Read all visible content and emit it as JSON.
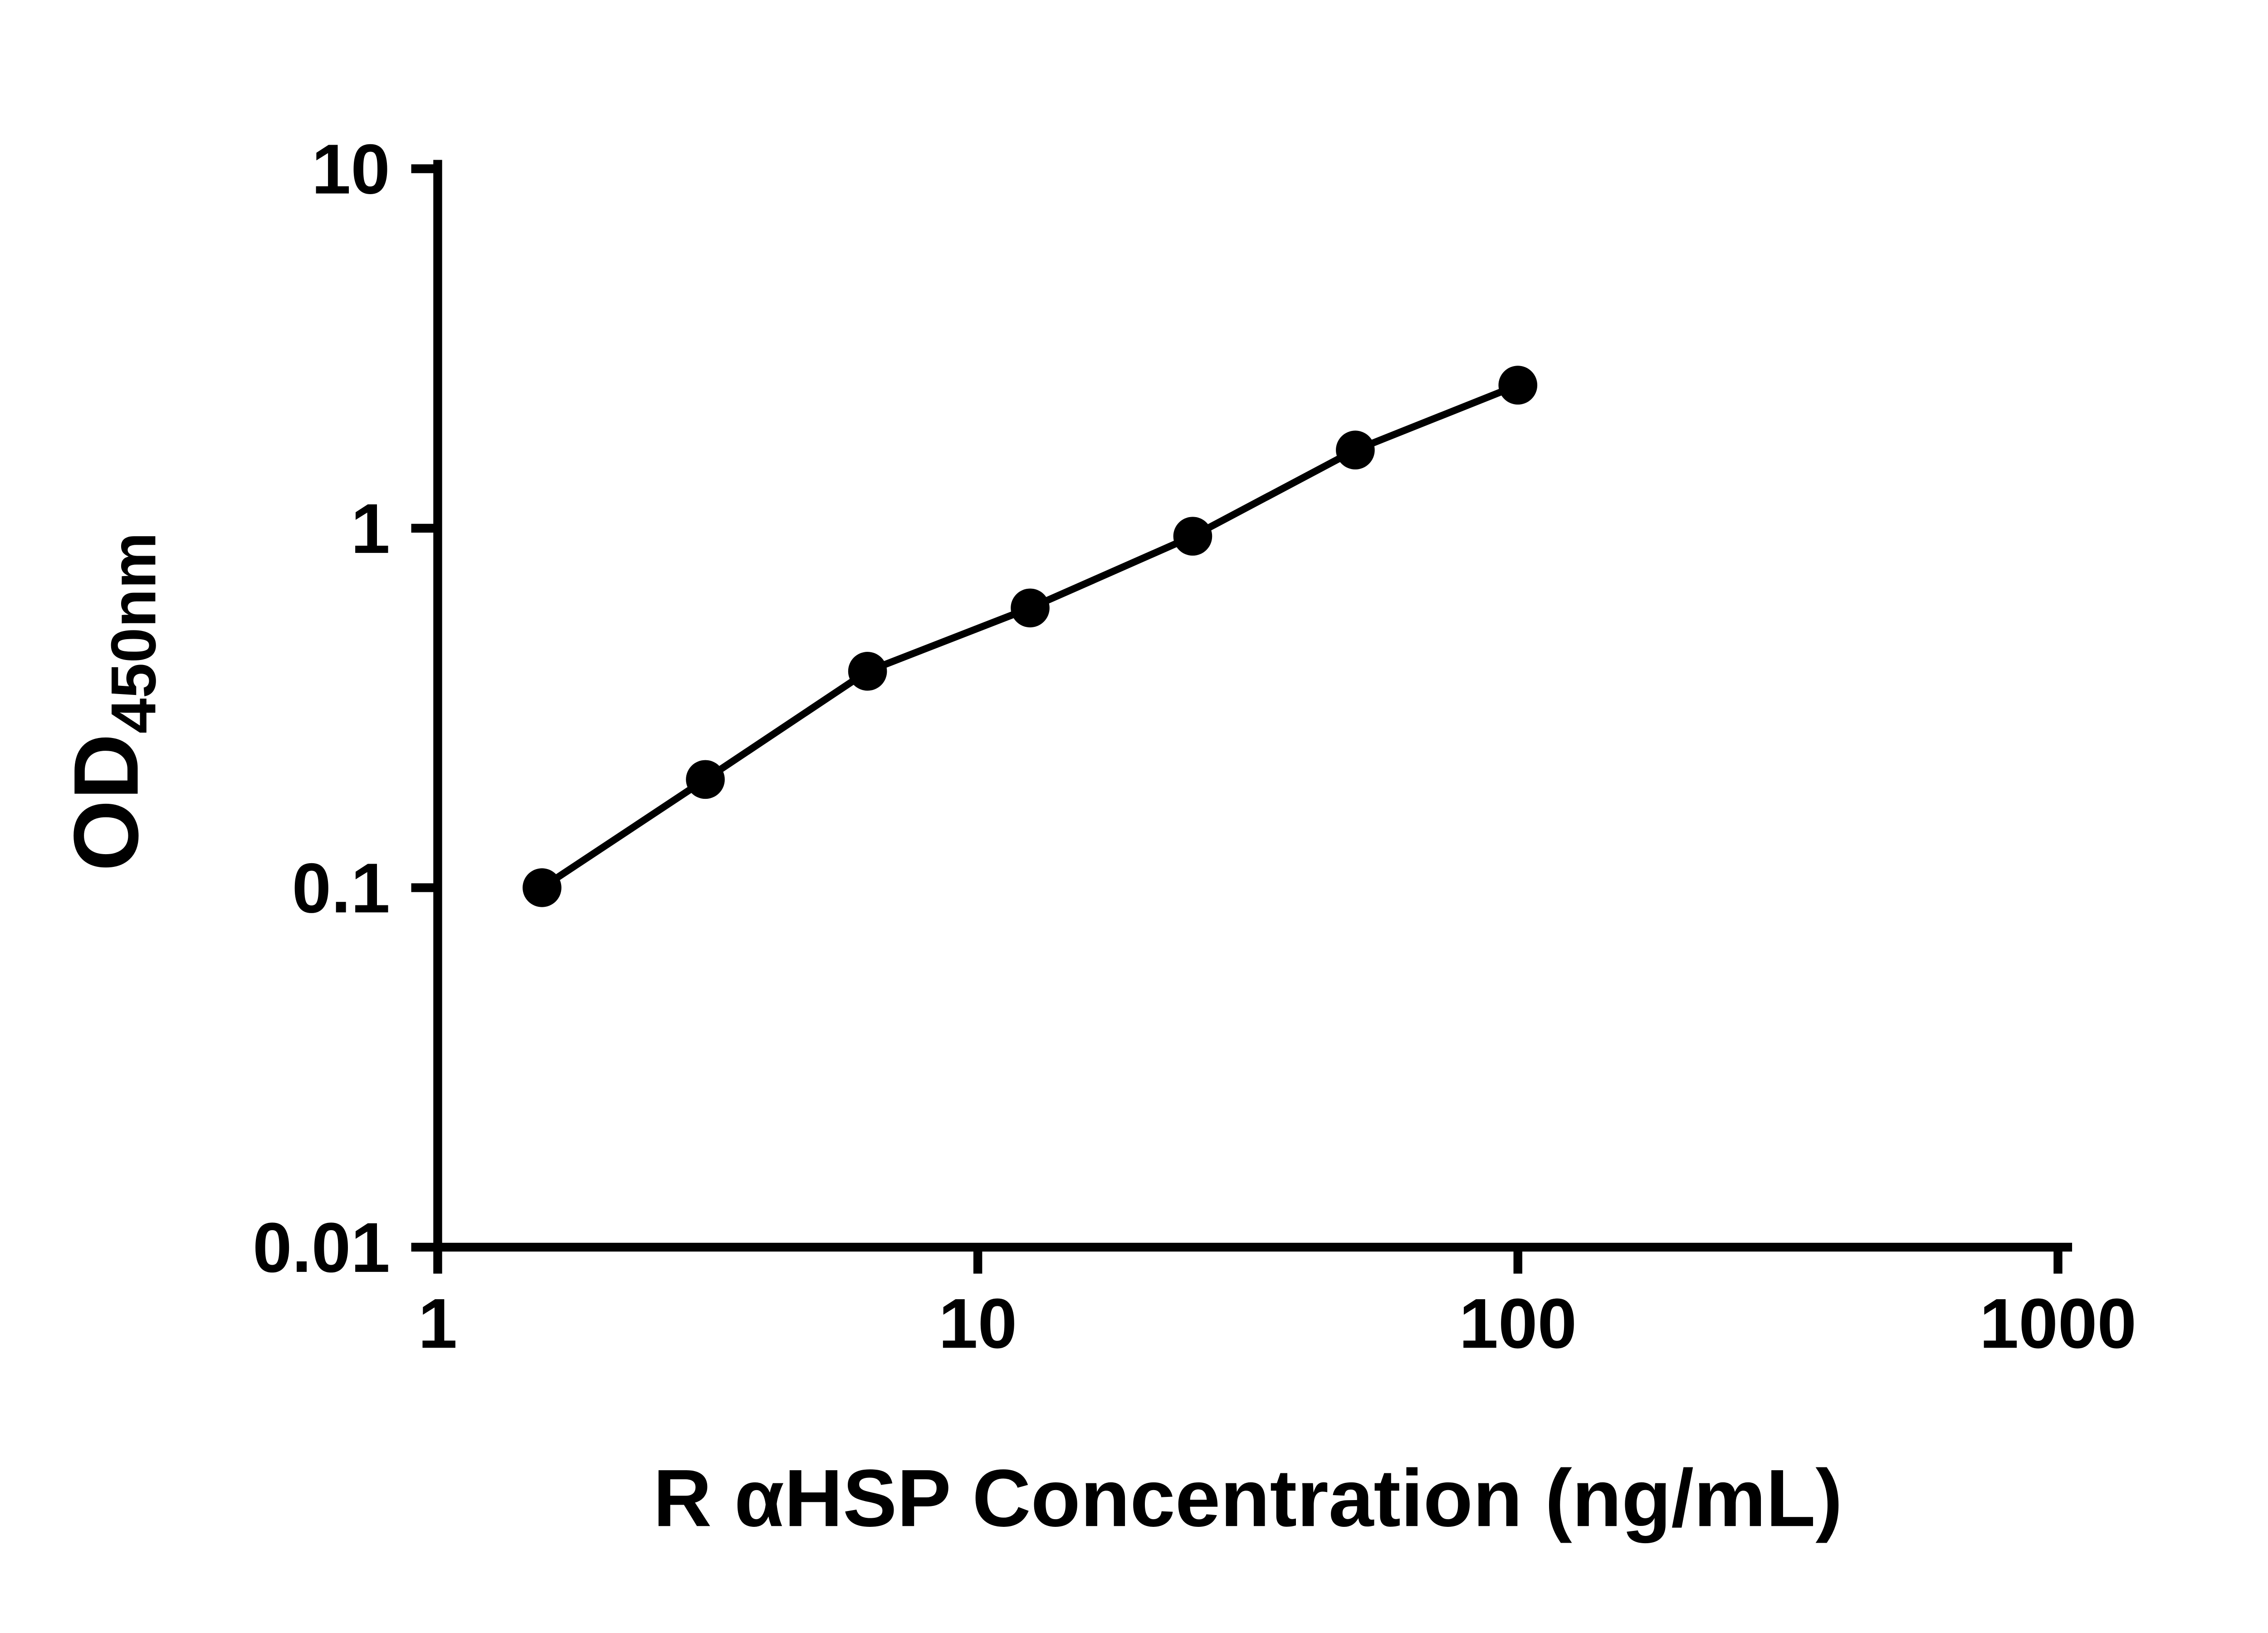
{
  "figure": {
    "background_color": "#ffffff",
    "axis_color": "#000000",
    "text_color": "#000000"
  },
  "chart_data": {
    "type": "scatter",
    "title": "",
    "xlabel": "R αHSP Concentration (ng/mL)",
    "ylabel": "OD",
    "ylabel_subscript": "450nm",
    "xscale": "log",
    "yscale": "log",
    "xlim": [
      1,
      1000
    ],
    "ylim": [
      0.01,
      10
    ],
    "x_ticks": [
      1,
      10,
      100,
      1000
    ],
    "x_tick_labels": [
      "1",
      "10",
      "100",
      "1000"
    ],
    "y_ticks": [
      0.01,
      0.1,
      1,
      10
    ],
    "y_tick_labels": [
      "0.01",
      "0.1",
      "1",
      "10"
    ],
    "grid": false,
    "legend": "none",
    "x": [
      1.56,
      3.13,
      6.25,
      12.5,
      25,
      50,
      100
    ],
    "y": [
      0.1,
      0.2,
      0.4,
      0.6,
      0.95,
      1.65,
      2.5
    ],
    "marker": "circle",
    "marker_color": "#000000",
    "line_color": "#000000",
    "trend_line": true
  }
}
